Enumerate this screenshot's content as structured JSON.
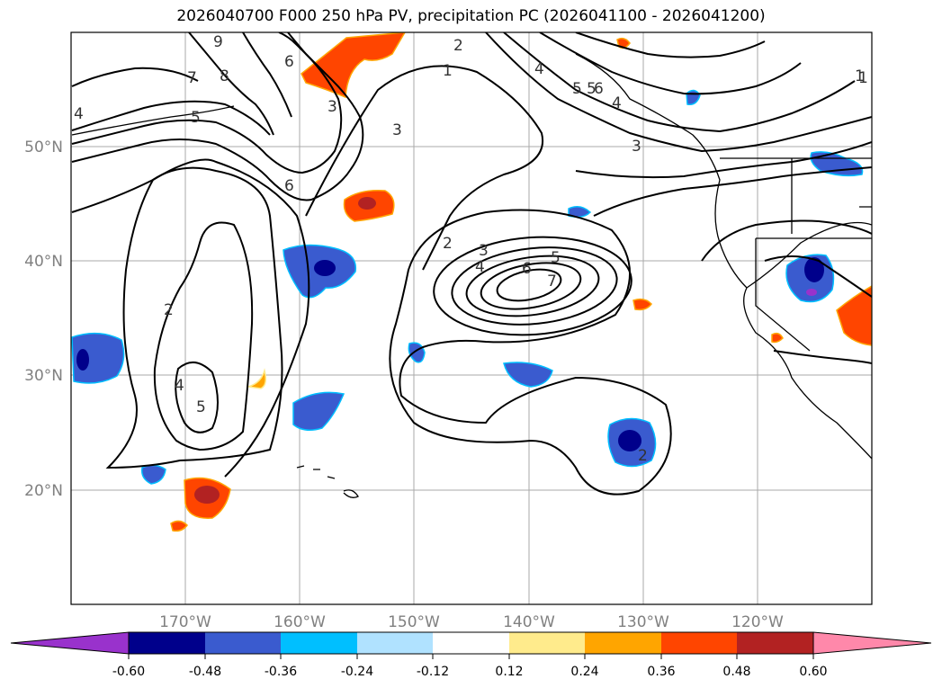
{
  "title": "2026040700 F000 250 hPa PV, precipitation PC (2026041100 - 2026041200)",
  "map": {
    "extent": {
      "lon_min": -180,
      "lon_max": -110,
      "lat_min": 10,
      "lat_max": 60
    },
    "lat_labels": [
      "50°N",
      "40°N",
      "30°N",
      "20°N"
    ],
    "lon_labels": [
      "170°W",
      "160°W",
      "150°W",
      "140°W",
      "130°W",
      "120°W"
    ],
    "contour_labels": [
      "9",
      "8",
      "7",
      "6",
      "5",
      "4",
      "3",
      "2",
      "1",
      "3",
      "2",
      "4",
      "5",
      "6",
      "7",
      "2",
      "3",
      "4",
      "5",
      "6",
      "5",
      "4",
      "2",
      "1",
      "4",
      "5",
      "6",
      "3",
      "1"
    ]
  },
  "colorbar": {
    "tick_labels": [
      "-0.60",
      "-0.48",
      "-0.36",
      "-0.24",
      "-0.12",
      "0.12",
      "0.24",
      "0.36",
      "0.48",
      "0.60"
    ],
    "colors": [
      "#9932CC",
      "#00008B",
      "#3A5BCF",
      "#00BFFF",
      "#B0E2FF",
      "#FFFFFF",
      "#FFEB8C",
      "#FFA500",
      "#FF4500",
      "#B22222",
      "#FF88AA"
    ]
  }
}
